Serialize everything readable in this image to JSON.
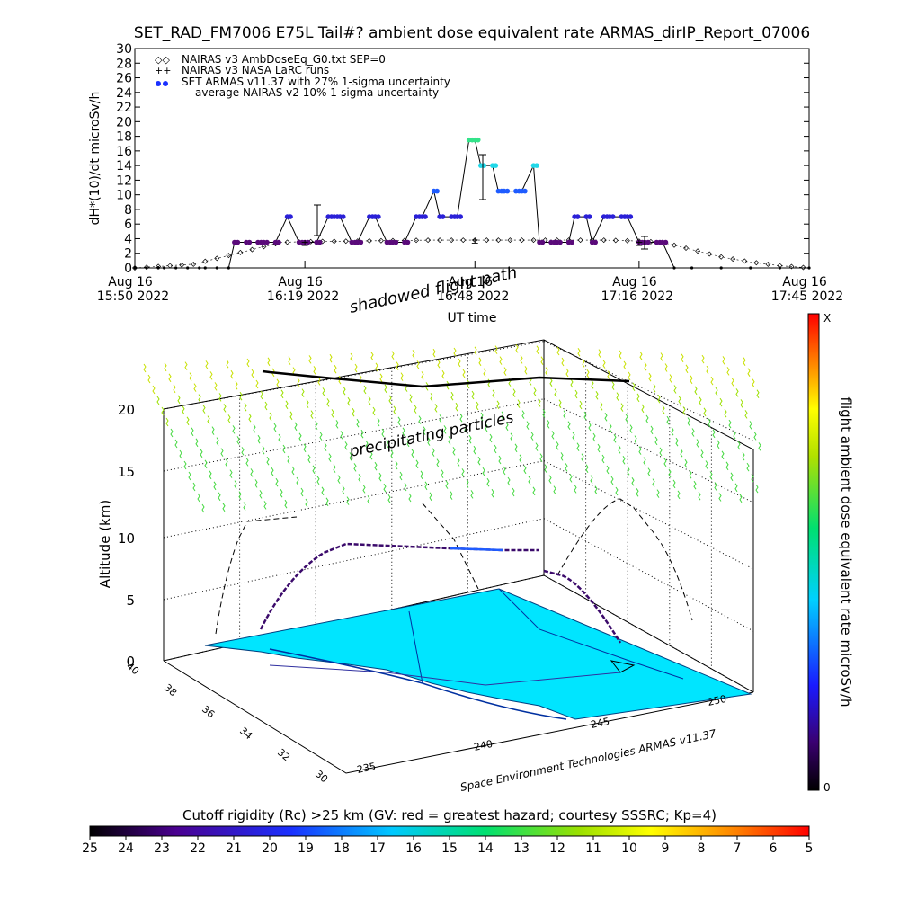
{
  "title": "SET_RAD_FM7006  E75L Tail#? ambient dose equivalent rate ARMAS_dirIP_Report_07006",
  "top_chart": {
    "ylabel": "dH*(10)/dt microSv/h",
    "xlabel": "UT time",
    "legend": [
      "NAIRAS v3 AmbDoseEq_G0.txt SEP=0",
      "NAIRAS v3 NASA LaRC runs",
      "SET ARMAS v11.37 with 27% 1-sigma uncertainty",
      "average NAIRAS v2 10% 1-sigma uncertainty"
    ],
    "x_ticks": [
      {
        "l1": "Aug 16",
        "l2": "15:50 2022"
      },
      {
        "l1": "Aug 16",
        "l2": "16:19 2022"
      },
      {
        "l1": "Aug 16",
        "l2": "16:48 2022"
      },
      {
        "l1": "Aug 16",
        "l2": "17:16 2022"
      },
      {
        "l1": "Aug 16",
        "l2": "17:45 2022"
      }
    ],
    "y_ticks": [
      "0",
      "2",
      "4",
      "6",
      "8",
      "10",
      "12",
      "14",
      "16",
      "18",
      "20",
      "22",
      "24",
      "26",
      "28",
      "30"
    ]
  },
  "chart_data": [
    {
      "type": "line",
      "title": "SET_RAD_FM7006  E75L Tail#? ambient dose equivalent rate ARMAS_dirIP_Report_07006",
      "xlabel": "UT time",
      "ylabel": "dH*(10)/dt microSv/h",
      "ylim": [
        0,
        30
      ],
      "xlim": [
        "2022-08-16 15:50",
        "2022-08-16 17:45"
      ],
      "series": [
        {
          "name": "SET ARMAS v11.37 with 27% 1-sigma uncertainty",
          "x": [
            "15:50",
            "15:52",
            "15:54",
            "15:55",
            "15:57",
            "15:59",
            "16:01",
            "16:02",
            "16:04",
            "16:06",
            "16:07",
            "16:09",
            "16:11",
            "16:12",
            "16:14",
            "16:16",
            "16:18",
            "16:19",
            "16:21",
            "16:23",
            "16:24",
            "16:25",
            "16:27",
            "16:28",
            "16:30",
            "16:31",
            "16:33",
            "16:34",
            "16:36",
            "16:38",
            "16:39",
            "16:41",
            "16:42",
            "16:44",
            "16:45",
            "16:47",
            "16:48",
            "16:49",
            "16:51",
            "16:52",
            "16:53",
            "16:55",
            "16:56",
            "16:58",
            "16:59",
            "17:01",
            "17:02",
            "17:04",
            "17:05",
            "17:07",
            "17:08",
            "17:10",
            "17:11",
            "17:13",
            "17:14",
            "17:16",
            "17:17",
            "17:19",
            "17:20",
            "17:22",
            "17:25",
            "17:30",
            "17:35",
            "17:40",
            "17:45"
          ],
          "y": [
            0,
            0,
            0,
            0,
            0,
            0,
            0,
            0,
            0,
            0,
            3.5,
            3.5,
            3.5,
            3.5,
            3.5,
            7,
            3.5,
            3.5,
            3.5,
            7,
            7,
            7,
            3.5,
            3.5,
            7,
            7,
            3.5,
            3.5,
            3.5,
            7,
            7,
            10.5,
            7,
            7,
            7,
            17.5,
            17.5,
            14,
            14,
            10.5,
            10.5,
            10.5,
            10.5,
            14,
            3.5,
            3.5,
            3.5,
            3.5,
            7,
            7,
            3.5,
            7,
            7,
            7,
            7,
            3.5,
            3.5,
            3.5,
            3.5,
            0,
            0,
            0,
            0,
            0,
            0
          ]
        },
        {
          "name": "NAIRAS v3 AmbDoseEq_G0.txt SEP=0",
          "x": [
            "15:50",
            "16:00",
            "16:05",
            "16:10",
            "16:15",
            "16:20",
            "16:30",
            "16:40",
            "16:50",
            "17:00",
            "17:10",
            "17:15",
            "17:20",
            "17:25",
            "17:30",
            "17:35",
            "17:40",
            "17:45"
          ],
          "y": [
            0,
            0.5,
            1.5,
            2.5,
            3.5,
            3.6,
            3.7,
            3.8,
            3.8,
            3.8,
            3.8,
            3.7,
            3.5,
            2.5,
            1.5,
            0.8,
            0.3,
            0
          ]
        },
        {
          "name": "NAIRAS v3 NASA LaRC runs",
          "x": [
            "16:19",
            "16:48",
            "17:16"
          ],
          "y": [
            3.5,
            3.8,
            3.5
          ]
        }
      ]
    }
  ],
  "bottom_chart": {
    "annotations": {
      "shadowed": "shadowed flight path",
      "precip": "precipitating particles",
      "credit": "Space Environment Technologies ARMAS v11.37"
    },
    "zlabel": "Altitude (km)",
    "z_ticks": [
      "0",
      "5",
      "10",
      "15",
      "20"
    ],
    "lat_ticks": [
      "40",
      "38",
      "36",
      "34",
      "32",
      "30"
    ],
    "lon_ticks": [
      "235",
      "240",
      "245",
      "250"
    ],
    "colorbar_label": "flight ambient dose equivalent rate microSv/h",
    "colorbar_top": "X",
    "colorbar_bottom": "0"
  },
  "rigidity_bar": {
    "label": "Cutoff rigidity (Rc) >25 km (GV: red = greatest hazard; courtesy SSSRC; Kp=4)",
    "ticks": [
      "25",
      "24",
      "23",
      "22",
      "21",
      "20",
      "19",
      "18",
      "17",
      "16",
      "15",
      "14",
      "13",
      "12",
      "11",
      "10",
      "9",
      "8",
      "7",
      "6",
      "5"
    ]
  },
  "colors": {
    "land": "#00e5ff",
    "armas_low": "#3b0a6b",
    "armas_mid": "#1f5cff",
    "armas_high": "#33e38a"
  }
}
